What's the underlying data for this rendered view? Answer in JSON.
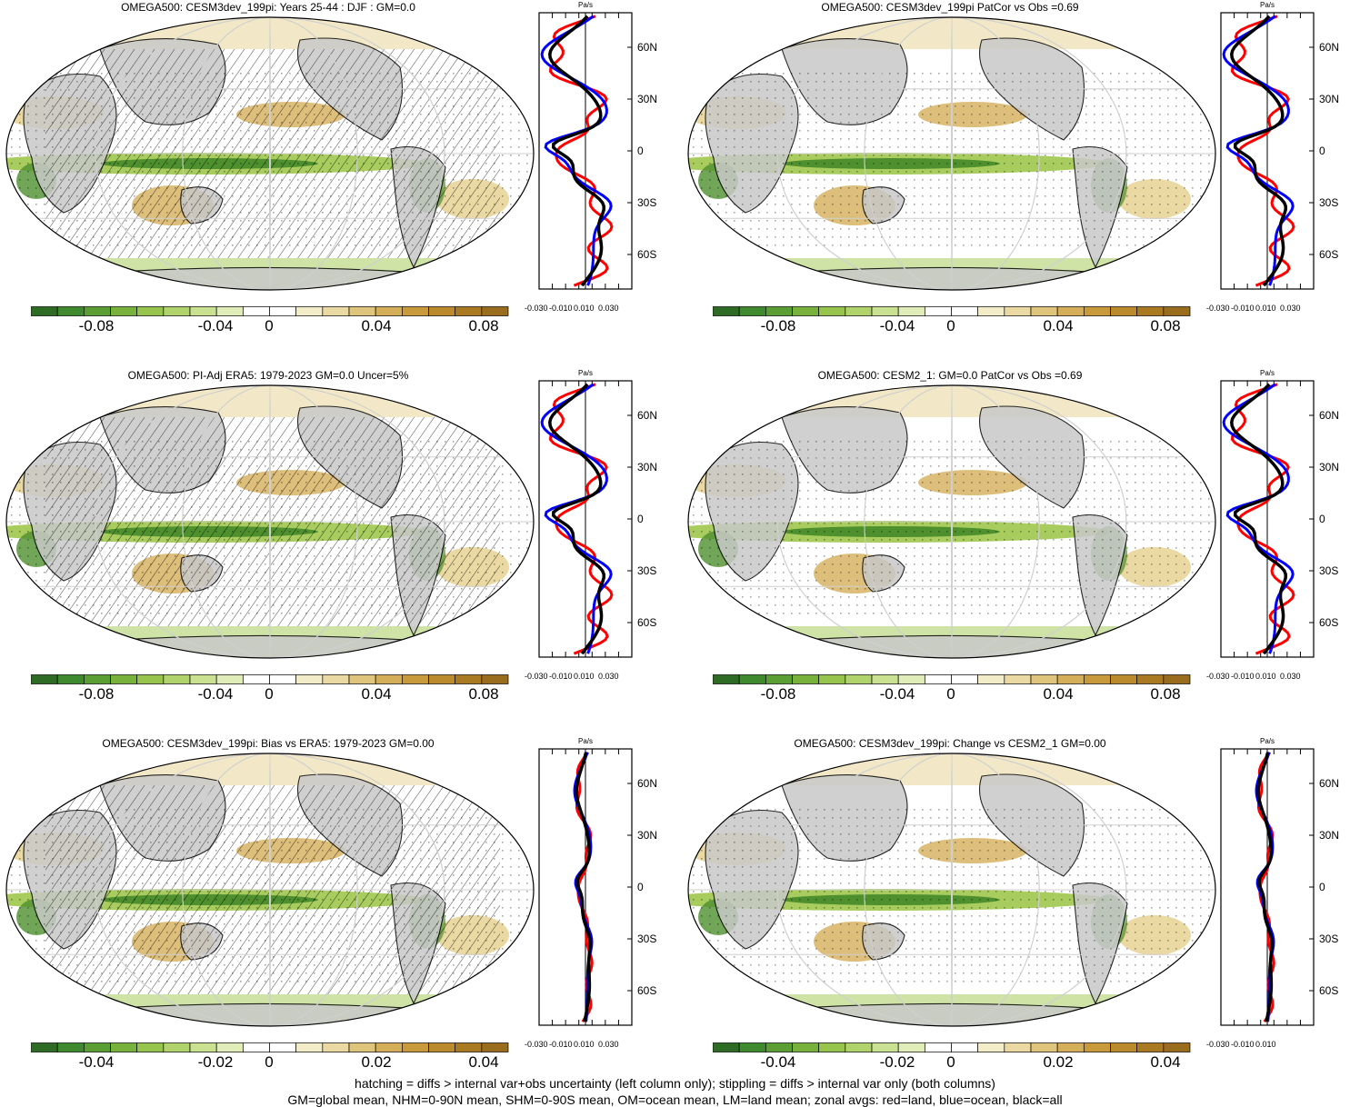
{
  "panels": [
    {
      "title": "OMEGA500: CESM3dev_199pi: Years 25-44 : DJF : GM=0.0",
      "cbar_labels": [
        "-0.08",
        "-0.04",
        "0",
        "0.04",
        "0.08"
      ],
      "lat_labels": [
        "60N",
        "30N",
        "0",
        "30S",
        "60S"
      ],
      "zonal_units": "Pa/s",
      "zonal_ticks": [
        "-0.030",
        "-0.010",
        "0.010",
        "0.030"
      ],
      "hatching": true
    },
    {
      "title": "OMEGA500: CESM3dev_199pi PatCor vs Obs =0.69",
      "cbar_labels": [
        "-0.08",
        "-0.04",
        "0",
        "0.04",
        "0.08"
      ],
      "lat_labels": [
        "60N",
        "30N",
        "0",
        "30S",
        "60S"
      ],
      "zonal_units": "Pa/s",
      "zonal_ticks": [
        "-0.030",
        "-0.010",
        "0.010",
        "0.030"
      ],
      "hatching": false
    },
    {
      "title": "OMEGA500: PI-Adj ERA5: 1979-2023 GM=0.0 Uncer=5%",
      "cbar_labels": [
        "-0.08",
        "-0.04",
        "0",
        "0.04",
        "0.08"
      ],
      "lat_labels": [
        "60N",
        "30N",
        "0",
        "30S",
        "60S"
      ],
      "zonal_units": "Pa/s",
      "zonal_ticks": [
        "-0.030",
        "-0.010",
        "0.010",
        "0.030"
      ],
      "hatching": true
    },
    {
      "title": "OMEGA500: CESM2_1: GM=0.0 PatCor vs Obs =0.69",
      "cbar_labels": [
        "-0.08",
        "-0.04",
        "0",
        "0.04",
        "0.08"
      ],
      "lat_labels": [
        "60N",
        "30N",
        "0",
        "30S",
        "60S"
      ],
      "zonal_units": "Pa/s",
      "zonal_ticks": [
        "-0.030",
        "-0.010",
        "0.010",
        "0.030"
      ],
      "hatching": false
    },
    {
      "title": "OMEGA500: CESM3dev_199pi: Bias vs ERA5: 1979-2023 GM=0.00",
      "cbar_labels": [
        "-0.04",
        "-0.02",
        "0",
        "0.02",
        "0.04"
      ],
      "lat_labels": [
        "60N",
        "30N",
        "0",
        "30S",
        "60S"
      ],
      "zonal_units": "Pa/s",
      "zonal_ticks": [
        "-0.030",
        "-0.010",
        "0.010",
        "0.030"
      ],
      "hatching": true
    },
    {
      "title": "OMEGA500: CESM3dev_199pi: Change vs CESM2_1 GM=0.00",
      "cbar_labels": [
        "-0.04",
        "-0.02",
        "0",
        "0.02",
        "0.04"
      ],
      "lat_labels": [
        "60N",
        "30N",
        "0",
        "30S",
        "60S"
      ],
      "zonal_units": "Pa/s",
      "zonal_ticks": [
        "-0.030",
        "-0.010",
        "0.010"
      ],
      "hatching": false
    }
  ],
  "colorbar_colors": [
    "#2e6b24",
    "#3f8a2e",
    "#5a9e34",
    "#78b23c",
    "#97c44c",
    "#b1d36c",
    "#c9e190",
    "#e0edb8",
    "#ffffff",
    "#ffffff",
    "#f3ecc8",
    "#ead9a2",
    "#dfc47c",
    "#d4ae59",
    "#c89a3c",
    "#bb8a2c",
    "#a97a22",
    "#9a6c1d"
  ],
  "colors": {
    "land": "#c8c8c8",
    "red": "#ff0000",
    "blue": "#0000ff",
    "black": "#000000",
    "green_mid": "#8fbf47",
    "brown_mid": "#d4ae59"
  },
  "footer": [
    "hatching = diffs > internal var+obs uncertainty (left column only); stippling = diffs > internal var only (both columns)",
    "GM=global mean, NHM=0-90N mean, SHM=0-90S mean, OM=ocean mean, LM=land mean; zonal avgs: red=land, blue=ocean, black=all"
  ]
}
